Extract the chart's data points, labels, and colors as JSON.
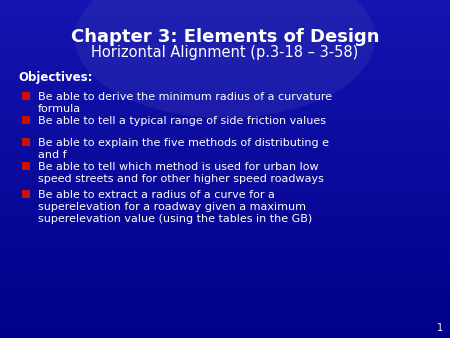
{
  "title_line1": "Chapter 3: Elements of Design",
  "title_line2": "Horizontal Alignment (p.3-18 – 3-58)",
  "objectives_label": "Objectives:",
  "bullet_points": [
    "Be able to derive the minimum radius of a curvature\nformula",
    "Be able to tell a typical range of side friction values",
    "Be able to explain the five methods of distributing e\nand f",
    "Be able to tell which method is used for urban low\nspeed streets and for other higher speed roadways",
    "Be able to extract a radius of a curve for a\nsuperelevation for a roadway given a maximum\nsuperelevation value (using the tables in the GB)"
  ],
  "bg_color_dark": "#000080",
  "bg_color_mid": "#0000bb",
  "title_color": "#ffffff",
  "text_color": "#ffffff",
  "bullet_color": "#cc1100",
  "slide_number": "1",
  "title_fontsize": 13,
  "subtitle_fontsize": 10.5,
  "objectives_fontsize": 8.5,
  "bullet_fontsize": 8,
  "slide_num_fontsize": 7
}
